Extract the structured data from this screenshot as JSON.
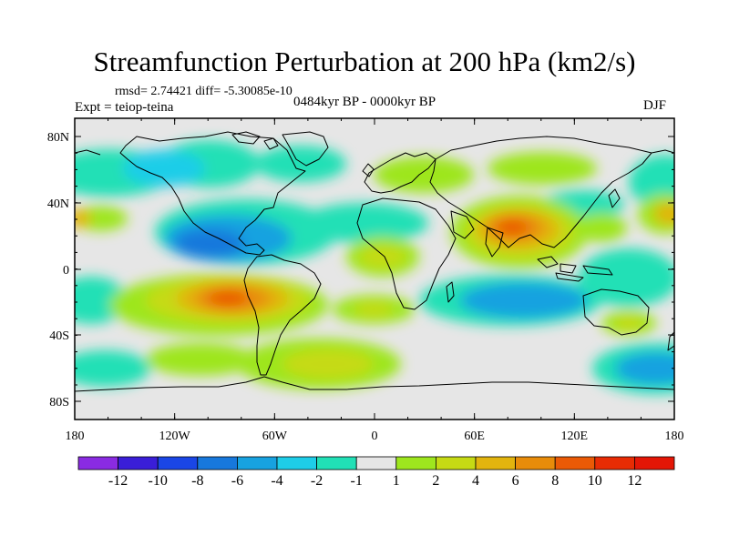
{
  "title": "Streamfunction Perturbation at 200 hPa (km2/s)",
  "stats": "rmsd= 2.74421 diff= -5.30085e-10",
  "experiment": "Expt = teiop-teina",
  "period": "0484kyr BP - 0000kyr BP",
  "season": "DJF",
  "y_ticks": [
    "80N",
    "40N",
    "0",
    "40S",
    "80S"
  ],
  "x_ticks": [
    "180",
    "120W",
    "60W",
    "0",
    "60E",
    "120E",
    "180"
  ],
  "colorbar": {
    "labels": [
      "-12",
      "-10",
      "-8",
      "-6",
      "-4",
      "-2",
      "-1",
      "1",
      "2",
      "4",
      "6",
      "8",
      "10",
      "12"
    ],
    "colors": [
      "#8a2be2",
      "#3a1ed8",
      "#1a46e6",
      "#1778dc",
      "#17a2e0",
      "#1ecde8",
      "#21e0b6",
      "#e6e6e6",
      "#9ee61e",
      "#c6da14",
      "#e2b40e",
      "#e88c0a",
      "#ea5a06",
      "#e82c04",
      "#e41606"
    ]
  },
  "colors": {
    "land_outline": "#000000",
    "neutral_fill": "#e6e6e6"
  }
}
